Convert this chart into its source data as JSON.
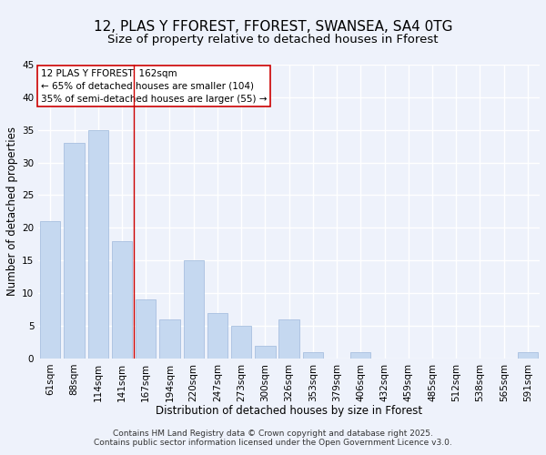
{
  "title": "12, PLAS Y FFOREST, FFOREST, SWANSEA, SA4 0TG",
  "subtitle": "Size of property relative to detached houses in Fforest",
  "xlabel": "Distribution of detached houses by size in Fforest",
  "ylabel": "Number of detached properties",
  "bar_color": "#c5d8f0",
  "bar_edge_color": "#a8c0e0",
  "categories": [
    "61sqm",
    "88sqm",
    "114sqm",
    "141sqm",
    "167sqm",
    "194sqm",
    "220sqm",
    "247sqm",
    "273sqm",
    "300sqm",
    "326sqm",
    "353sqm",
    "379sqm",
    "406sqm",
    "432sqm",
    "459sqm",
    "485sqm",
    "512sqm",
    "538sqm",
    "565sqm",
    "591sqm"
  ],
  "values": [
    21,
    33,
    35,
    18,
    9,
    6,
    15,
    7,
    5,
    2,
    6,
    1,
    0,
    1,
    0,
    0,
    0,
    0,
    0,
    0,
    1
  ],
  "ylim": [
    0,
    45
  ],
  "yticks": [
    0,
    5,
    10,
    15,
    20,
    25,
    30,
    35,
    40,
    45
  ],
  "vline_index": 4,
  "vline_color": "#cc0000",
  "annotation_title": "12 PLAS Y FFOREST: 162sqm",
  "annotation_line1": "← 65% of detached houses are smaller (104)",
  "annotation_line2": "35% of semi-detached houses are larger (55) →",
  "footer1": "Contains HM Land Registry data © Crown copyright and database right 2025.",
  "footer2": "Contains public sector information licensed under the Open Government Licence v3.0.",
  "background_color": "#eef2fb",
  "grid_color": "#ffffff",
  "title_fontsize": 11,
  "subtitle_fontsize": 9.5,
  "axis_label_fontsize": 8.5,
  "tick_fontsize": 7.5,
  "annotation_fontsize": 7.5,
  "footer_fontsize": 6.5
}
